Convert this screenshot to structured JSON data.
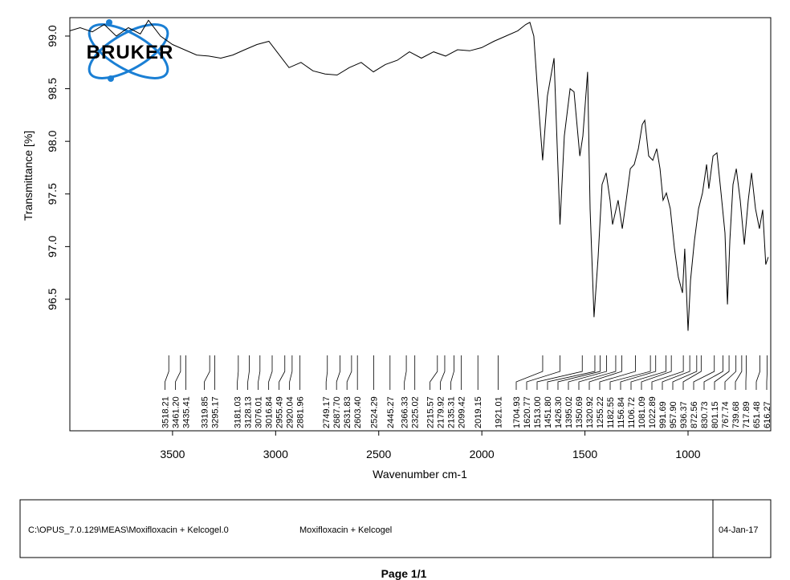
{
  "chart_data": {
    "type": "line",
    "ylabel": "Transmittance [%]",
    "xlabel": "Wavenumber cm-1",
    "logo": "BRUKER",
    "xlim": [
      3998,
      599
    ],
    "ylim": [
      95.25,
      99.175
    ],
    "xticks": [
      3500,
      3000,
      2500,
      2000,
      1500,
      1000
    ],
    "yticks": [
      96.5,
      {
        "value": 97,
        "label": "97.0"
      },
      97.5,
      {
        "value": 98,
        "label": "98.0"
      },
      98.5,
      {
        "value": 99,
        "label": "99.0"
      }
    ],
    "series": [
      {
        "color": "#000000",
        "x": [
          3998,
          3948,
          3889,
          3831,
          3773,
          3714,
          3656,
          3617,
          3558,
          3500,
          3442,
          3383,
          3325,
          3266,
          3208,
          3150,
          3091,
          3033,
          2994,
          2935,
          2877,
          2819,
          2760,
          2702,
          2643,
          2585,
          2526,
          2468,
          2410,
          2351,
          2293,
          2234,
          2176,
          2118,
          2059,
          2001,
          1942,
          1884,
          1826,
          1787,
          1767,
          1748,
          1728,
          1705,
          1682,
          1650,
          1621,
          1600,
          1572,
          1553,
          1525,
          1510,
          1487,
          1475,
          1456,
          1436,
          1417,
          1397,
          1378,
          1366,
          1339,
          1319,
          1300,
          1280,
          1261,
          1241,
          1222,
          1210,
          1191,
          1171,
          1152,
          1136,
          1121,
          1105,
          1086,
          1066,
          1047,
          1027,
          1016,
          1000,
          988,
          969,
          949,
          930,
          910,
          899,
          879,
          860,
          840,
          821,
          809,
          797,
          782,
          766,
          747,
          727,
          708,
          692,
          673,
          654,
          638,
          623,
          611
        ],
        "values": [
          99.05,
          99.08,
          99.04,
          99.11,
          99.0,
          99.08,
          99.02,
          99.15,
          99.0,
          98.92,
          98.87,
          98.82,
          98.81,
          98.79,
          98.82,
          98.87,
          98.92,
          98.95,
          98.85,
          98.7,
          98.75,
          98.67,
          98.64,
          98.63,
          98.7,
          98.75,
          98.66,
          98.73,
          98.77,
          98.85,
          98.79,
          98.85,
          98.81,
          98.87,
          98.86,
          98.89,
          98.95,
          99.0,
          99.05,
          99.11,
          99.13,
          99.0,
          98.43,
          97.82,
          98.43,
          98.79,
          97.21,
          98.05,
          98.5,
          98.47,
          97.86,
          98.05,
          98.66,
          97.36,
          96.33,
          96.9,
          97.59,
          97.7,
          97.44,
          97.21,
          97.44,
          97.17,
          97.44,
          97.74,
          97.78,
          97.93,
          98.16,
          98.2,
          97.86,
          97.82,
          97.93,
          97.74,
          97.44,
          97.51,
          97.36,
          96.98,
          96.71,
          96.56,
          96.98,
          96.2,
          96.68,
          97.06,
          97.36,
          97.51,
          97.78,
          97.55,
          97.86,
          97.89,
          97.51,
          97.13,
          96.45,
          97.06,
          97.59,
          97.74,
          97.44,
          97.02,
          97.44,
          97.7,
          97.36,
          97.17,
          97.35,
          96.83,
          96.9
        ]
      }
    ],
    "peaks": {
      "values": [
        3518.21,
        3461.2,
        3435.41,
        3319.85,
        3295.17,
        3181.03,
        3128.13,
        3076.01,
        3016.84,
        2955.49,
        2920.04,
        2881.96,
        2749.17,
        2687.7,
        2631.83,
        2603.4,
        2524.29,
        2445.27,
        2366.33,
        2325.02,
        2215.57,
        2179.92,
        2135.31,
        2099.42,
        2019.15,
        1921.01,
        1704.93,
        1620.77,
        1513,
        1451.8,
        1426.3,
        1395.02,
        1350.69,
        1320.92,
        1255.22,
        1182.55,
        1156.84,
        1106.72,
        1081.09,
        1022.89,
        991.69,
        957.9,
        936.37,
        872.56,
        830.73,
        801.15,
        767.74,
        739.68,
        717.89,
        651.48,
        616.27
      ],
      "value_labels": [
        "3518.21",
        "3461.20",
        "3435.41",
        "3319.85",
        "3295.17",
        "3181.03",
        "3128.13",
        "3076.01",
        "3016.84",
        "2955.49",
        "2920.04",
        "2881.96",
        "2749.17",
        "2687.70",
        "2631.83",
        "2603.40",
        "2524.29",
        "2445.27",
        "2366.33",
        "2325.02",
        "2215.57",
        "2179.92",
        "2135.31",
        "2099.42",
        "2019.15",
        "1921.01",
        "1704.93",
        "1620.77",
        "1513.00",
        "1451.80",
        "1426.30",
        "1395.02",
        "1350.69",
        "1320.92",
        "1255.22",
        "1182.55",
        "1156.84",
        "1106.72",
        "1081.09",
        "1022.89",
        "991.69",
        "957.90",
        "936.37",
        "872.56",
        "830.73",
        "801.15",
        "767.74",
        "739.68",
        "717.89",
        "651.48",
        "616.27"
      ]
    }
  },
  "footer": {
    "file": "C:\\OPUS_7.0.129\\MEAS\\Moxifloxacin + Kelcogel.0",
    "sample": "Moxifloxacin + Kelcogel",
    "date": "04-Jan-17"
  },
  "page": "Page 1/1"
}
